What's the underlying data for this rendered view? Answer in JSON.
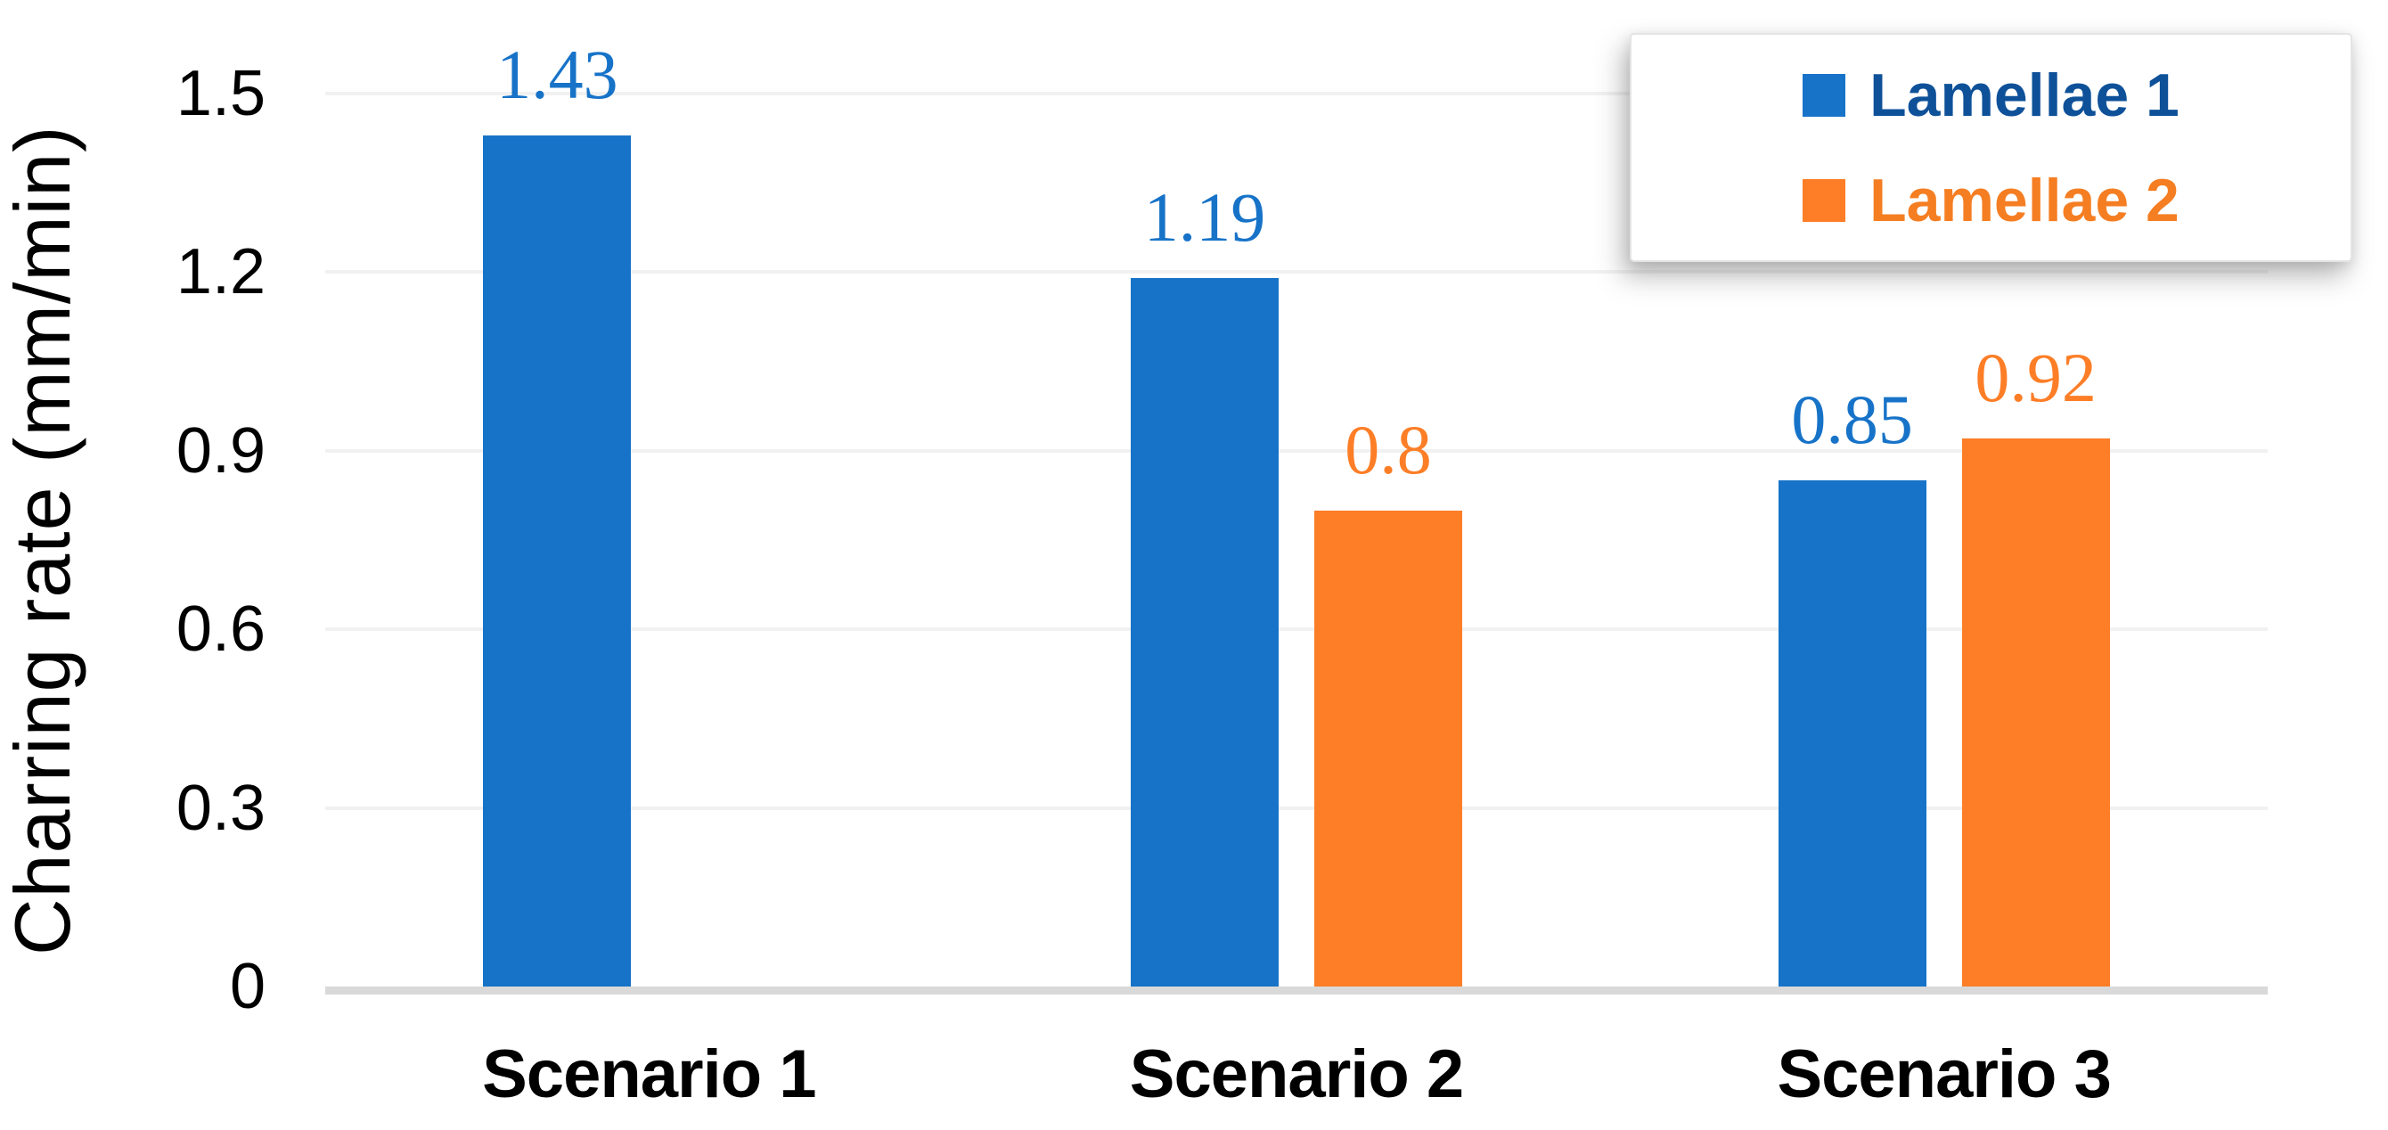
{
  "chart_data": {
    "type": "bar",
    "title": "",
    "categories": [
      "Scenario 1",
      "Scenario 2",
      "Scenario 3"
    ],
    "series": [
      {
        "name": "Lamellae 1",
        "color": "#1773C8",
        "values": [
          1.43,
          1.19,
          0.85
        ],
        "data_labels": [
          "1.43",
          "1.19",
          "0.85"
        ]
      },
      {
        "name": "Lamellae 2",
        "color": "#FD7E27",
        "values": [
          null,
          0.8,
          0.92
        ],
        "data_labels": [
          "",
          "0.8",
          "0.92"
        ]
      }
    ],
    "xlabel": "",
    "ylabel": "Charring rate (mm/min)",
    "ylim": [
      0,
      1.5
    ],
    "ytick_labels": [
      "1.5",
      "1.2",
      "0.9",
      "0.6",
      "0.3",
      "0"
    ],
    "ytick_values": [
      1.5,
      1.2,
      0.9,
      0.6,
      0.3,
      0
    ],
    "grid": "horizontal",
    "legend_position": "top-right"
  },
  "legend": {
    "items": [
      {
        "label": "Lamellae 1",
        "marker_color": "#1773C8",
        "text_color": "#0E5199"
      },
      {
        "label": "Lamellae 2",
        "marker_color": "#FD7E27",
        "text_color": "#F57E22"
      }
    ]
  },
  "colors": {
    "background": "#FFFFFF",
    "gridline": "#F1F1F1",
    "axis_line": "#D9D9D9",
    "axis_text": "#000000"
  }
}
